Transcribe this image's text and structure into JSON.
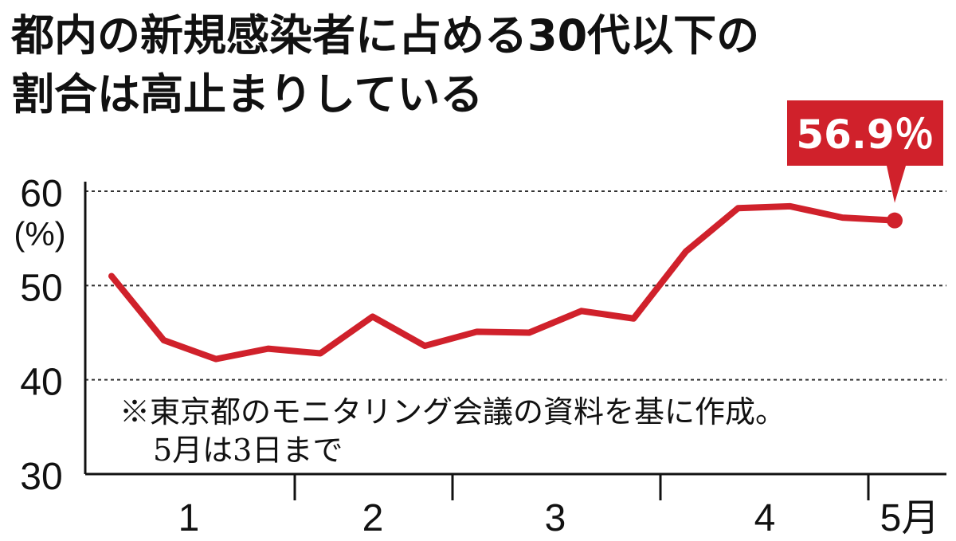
{
  "title_lines": [
    "都内の新規感染者に占める30代以下の",
    "割合は高止まりしている"
  ],
  "note_lines": [
    "※東京都のモニタリング会議の資料を基に作成。",
    "5月は3日まで"
  ],
  "colors": {
    "line": "#d0212b",
    "axis": "#111111",
    "grid": "#333333",
    "background": "#ffffff"
  },
  "chart_data": {
    "type": "line",
    "title": "都内の新規感染者に占める30代以下の割合は高止まりしている",
    "ylabel": "(%)",
    "ylim": [
      30,
      60
    ],
    "y_ticks": [
      "60",
      "50",
      "40",
      "30"
    ],
    "y_unit_label": "(%)",
    "grid": "dashed horizontal at 40, 50, 60",
    "month_labels": [
      "1",
      "2",
      "3",
      "4",
      "5月"
    ],
    "month_fractions": [
      0.0,
      0.309,
      0.55,
      0.843,
      1.0
    ],
    "series": [
      {
        "values": [
          51.0,
          44.2,
          42.2,
          43.3,
          42.8,
          46.7,
          43.6,
          45.1,
          45.0,
          47.3,
          46.5,
          53.6,
          58.2,
          58.4,
          57.2,
          56.9
        ]
      }
    ],
    "last_value_label": "56.9％",
    "last_value": 56.9
  }
}
